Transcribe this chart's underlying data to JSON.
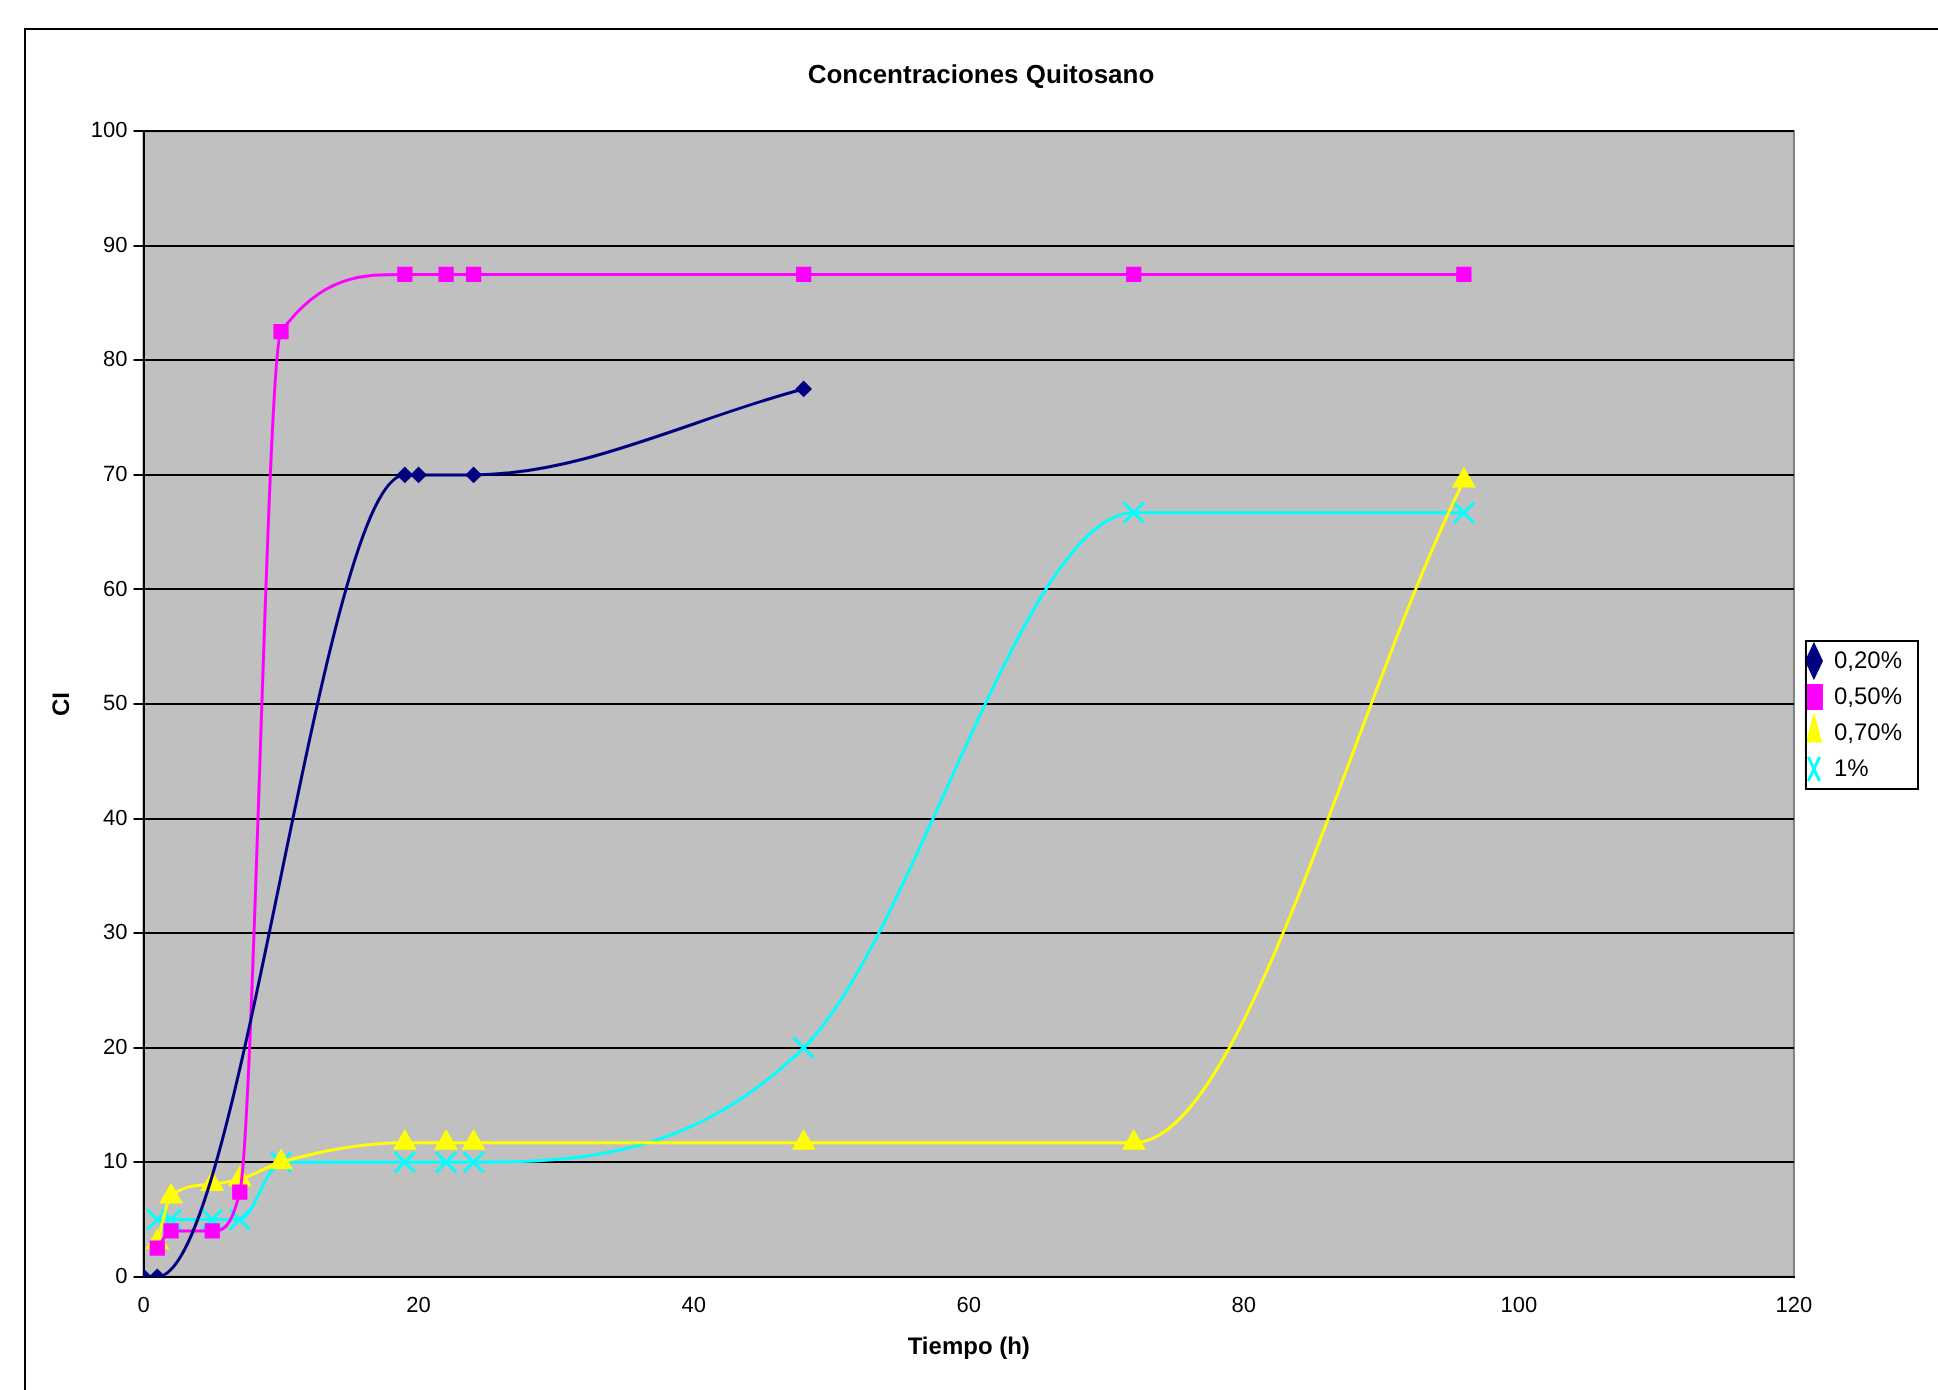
{
  "chart_data": {
    "type": "line",
    "title": "Concentraciones Quitosano",
    "xlabel": "Tiempo (h)",
    "ylabel": "CI",
    "xlim": [
      0,
      120
    ],
    "xticks": [
      0,
      20,
      40,
      60,
      80,
      100,
      120
    ],
    "ylim": [
      0,
      100
    ],
    "yticks": [
      0,
      10,
      20,
      30,
      40,
      50,
      60,
      70,
      80,
      90,
      100
    ],
    "grid": "y",
    "legend": "right",
    "series": [
      {
        "name": "0,20%",
        "color": "#000080",
        "marker": "diamond",
        "x": [
          0,
          1,
          19,
          20,
          24,
          48
        ],
        "values": [
          0,
          0,
          70,
          70,
          70,
          77.5
        ]
      },
      {
        "name": "0,50%",
        "color": "#ff00ff",
        "marker": "square",
        "x": [
          1,
          2,
          5,
          7,
          10,
          19,
          22,
          24,
          48,
          72,
          96
        ],
        "values": [
          2.5,
          4,
          4,
          7.4,
          82.5,
          87.5,
          87.5,
          87.5,
          87.5,
          87.5,
          87.5
        ]
      },
      {
        "name": "0,70%",
        "color": "#ffff00",
        "marker": "triangle",
        "x": [
          1,
          2,
          5,
          7,
          10,
          19,
          22,
          24,
          48,
          72,
          96
        ],
        "values": [
          3,
          7,
          8.1,
          8.5,
          10,
          11.7,
          11.7,
          11.7,
          11.7,
          11.7,
          69.5
        ]
      },
      {
        "name": "1%",
        "color": "#00ffff",
        "marker": "cross",
        "x": [
          1,
          2,
          5,
          7,
          10,
          19,
          22,
          24,
          48,
          72,
          96
        ],
        "values": [
          5,
          5,
          5,
          5,
          10,
          10,
          10,
          10,
          20,
          66.7,
          66.7
        ]
      }
    ]
  }
}
